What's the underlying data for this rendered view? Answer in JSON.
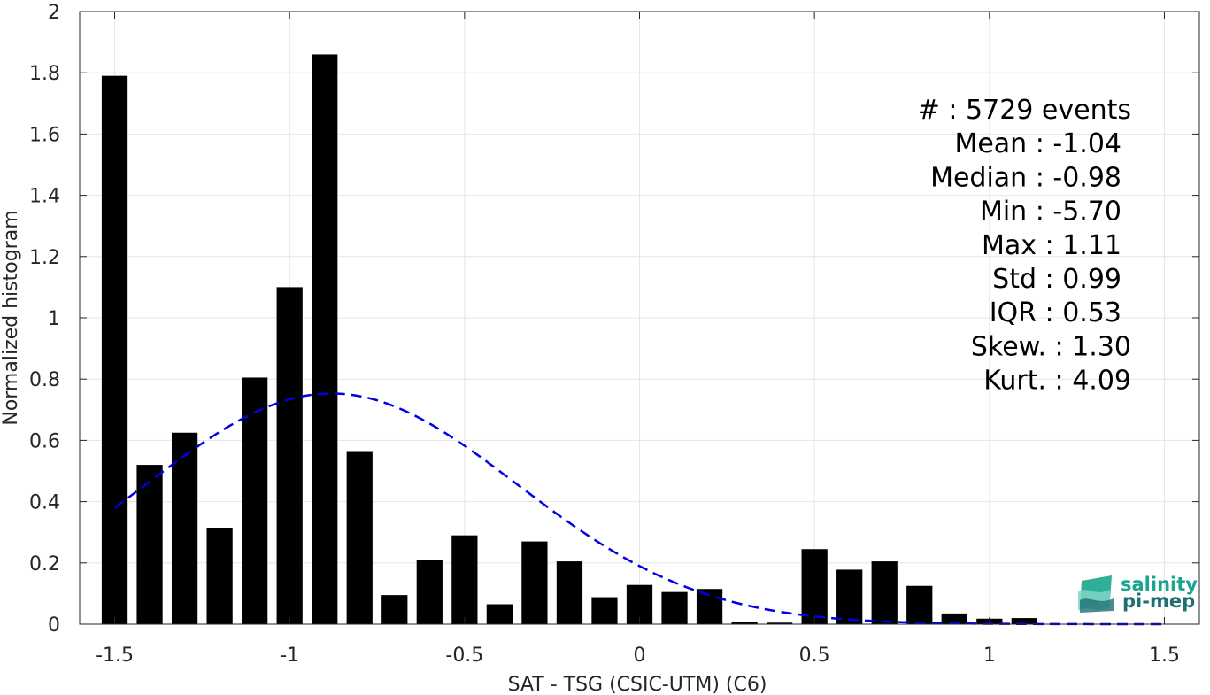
{
  "chart_data": {
    "type": "bar",
    "xlabel": "SAT - TSG (CSIC-UTM) (C6)",
    "ylabel": "Normalized histogram",
    "xlim": [
      -1.6,
      1.6
    ],
    "ylim": [
      0,
      2
    ],
    "x_ticks": [
      "-1.5",
      "-1",
      "-0.5",
      "0",
      "0.5",
      "1",
      "1.5"
    ],
    "y_ticks": [
      "0",
      "0.2",
      "0.4",
      "0.6",
      "0.8",
      "1",
      "1.2",
      "1.4",
      "1.6",
      "1.8",
      "2"
    ],
    "grid": true,
    "bar_color": "#000000",
    "bins": [
      {
        "x": -1.5,
        "value": 1.79
      },
      {
        "x": -1.4,
        "value": 0.52
      },
      {
        "x": -1.3,
        "value": 0.625
      },
      {
        "x": -1.2,
        "value": 0.315
      },
      {
        "x": -1.1,
        "value": 0.805
      },
      {
        "x": -1.0,
        "value": 1.1
      },
      {
        "x": -0.9,
        "value": 1.86
      },
      {
        "x": -0.8,
        "value": 0.565
      },
      {
        "x": -0.7,
        "value": 0.095
      },
      {
        "x": -0.6,
        "value": 0.21
      },
      {
        "x": -0.5,
        "value": 0.29
      },
      {
        "x": -0.4,
        "value": 0.065
      },
      {
        "x": -0.3,
        "value": 0.27
      },
      {
        "x": -0.2,
        "value": 0.205
      },
      {
        "x": -0.1,
        "value": 0.088
      },
      {
        "x": 0.0,
        "value": 0.128
      },
      {
        "x": 0.1,
        "value": 0.105
      },
      {
        "x": 0.2,
        "value": 0.115
      },
      {
        "x": 0.3,
        "value": 0.008
      },
      {
        "x": 0.4,
        "value": 0.005
      },
      {
        "x": 0.5,
        "value": 0.245
      },
      {
        "x": 0.6,
        "value": 0.178
      },
      {
        "x": 0.7,
        "value": 0.205
      },
      {
        "x": 0.8,
        "value": 0.125
      },
      {
        "x": 0.9,
        "value": 0.035
      },
      {
        "x": 1.0,
        "value": 0.018
      },
      {
        "x": 1.1,
        "value": 0.02
      }
    ],
    "fit_curve": {
      "type": "gaussian",
      "style": "dashed",
      "color": "#0000e0",
      "peak_x": -0.88,
      "peak_y": 0.753,
      "sigma": 0.53,
      "x_range": [
        -1.5,
        1.5
      ]
    },
    "annotations": [
      "#  : 5729 events",
      "Mean : -1.04",
      "Median : -0.98",
      "Min : -5.70",
      "Max : 1.11",
      "Std : 0.99",
      "IQR : 0.53",
      "Skew. : 1.30",
      "Kurt. : 4.09"
    ]
  },
  "logo": {
    "line1": "salinity",
    "line2": "pi-mep",
    "color1": "#1aa58f",
    "color2": "#1f6f73"
  }
}
